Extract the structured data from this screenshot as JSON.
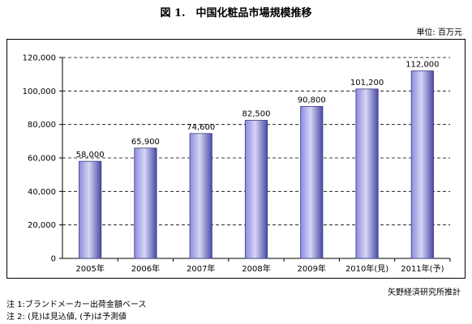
{
  "title": "図 1.　中国化粧品市場規模推移",
  "unit_label": "単位: 百万元",
  "source": "矢野経済研究所推計",
  "notes": [
    "注 1:ブランドメーカー出荷金額ベース",
    "注 2: (見)は見込値, (予)は予測値"
  ],
  "chart_data": {
    "type": "bar",
    "title": "図 1.　中国化粧品市場規模推移",
    "xlabel": "",
    "ylabel": "",
    "unit": "百万元",
    "categories": [
      "2005年",
      "2006年",
      "2007年",
      "2008年",
      "2009年",
      "2010年(見)",
      "2011年(予)"
    ],
    "values": [
      58000,
      65900,
      74600,
      82500,
      90800,
      101200,
      112000
    ],
    "value_labels": [
      "58,000",
      "65,900",
      "74,600",
      "82,500",
      "90,800",
      "101,200",
      "112,000"
    ],
    "ylim": [
      0,
      120000
    ],
    "yticks": [
      0,
      20000,
      40000,
      60000,
      80000,
      100000,
      120000
    ],
    "ytick_labels": [
      "0",
      "20,000",
      "40,000",
      "60,000",
      "80,000",
      "100,000",
      "120,000"
    ],
    "grid": "horizontal dashed",
    "legend": "none",
    "bar_color_light": "#d6d6f4",
    "bar_color_mid": "#8b8be0",
    "bar_color_dark": "#4a4aa8"
  }
}
